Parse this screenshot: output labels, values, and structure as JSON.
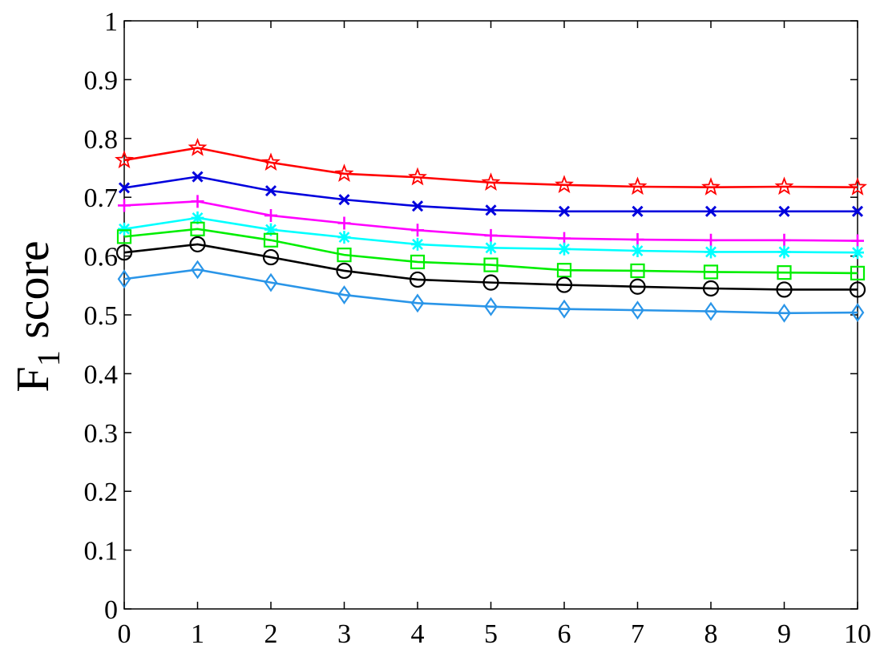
{
  "chart_data": {
    "type": "line",
    "title": "",
    "xlabel": "",
    "ylabel": "F",
    "ylabel_subscript": "1",
    "ylabel_rest": " score",
    "xlim": [
      0,
      10
    ],
    "ylim": [
      0,
      1
    ],
    "x_ticks": [
      "0",
      "1",
      "2",
      "3",
      "4",
      "5",
      "6",
      "7",
      "8",
      "9",
      "10"
    ],
    "y_ticks": [
      "0",
      "0.1",
      "0.2",
      "0.3",
      "0.4",
      "0.5",
      "0.6",
      "0.7",
      "0.8",
      "0.9",
      "1"
    ],
    "grid": false,
    "x": [
      0,
      1,
      2,
      3,
      4,
      5,
      6,
      7,
      8,
      9,
      10
    ],
    "series": [
      {
        "color": "#ff0000",
        "marker": "star",
        "values": [
          0.763,
          0.784,
          0.759,
          0.74,
          0.734,
          0.725,
          0.721,
          0.718,
          0.717,
          0.718,
          0.717
        ]
      },
      {
        "color": "#0000dd",
        "marker": "x",
        "values": [
          0.716,
          0.735,
          0.711,
          0.696,
          0.685,
          0.678,
          0.676,
          0.676,
          0.676,
          0.676,
          0.676
        ]
      },
      {
        "color": "#ff00ff",
        "marker": "plus",
        "values": [
          0.686,
          0.693,
          0.669,
          0.656,
          0.644,
          0.635,
          0.63,
          0.628,
          0.627,
          0.627,
          0.626
        ]
      },
      {
        "color": "#00ffff",
        "marker": "asterisk",
        "values": [
          0.646,
          0.665,
          0.645,
          0.632,
          0.62,
          0.614,
          0.612,
          0.609,
          0.607,
          0.607,
          0.606
        ]
      },
      {
        "color": "#00ee00",
        "marker": "square",
        "values": [
          0.633,
          0.646,
          0.627,
          0.602,
          0.59,
          0.585,
          0.576,
          0.575,
          0.573,
          0.572,
          0.571
        ]
      },
      {
        "color": "#000000",
        "marker": "circle",
        "values": [
          0.606,
          0.62,
          0.598,
          0.575,
          0.56,
          0.555,
          0.551,
          0.548,
          0.545,
          0.543,
          0.543
        ]
      },
      {
        "color": "#2a95e8",
        "marker": "diamond",
        "values": [
          0.561,
          0.577,
          0.555,
          0.534,
          0.52,
          0.514,
          0.51,
          0.508,
          0.506,
          0.503,
          0.504
        ]
      }
    ]
  }
}
